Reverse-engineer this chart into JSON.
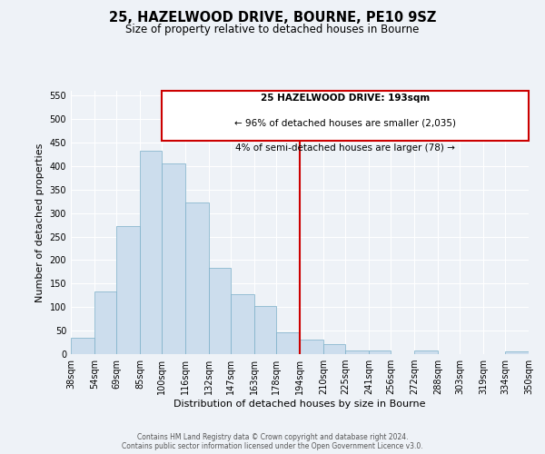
{
  "title": "25, HAZELWOOD DRIVE, BOURNE, PE10 9SZ",
  "subtitle": "Size of property relative to detached houses in Bourne",
  "xlabel": "Distribution of detached houses by size in Bourne",
  "ylabel": "Number of detached properties",
  "bin_labels": [
    "38sqm",
    "54sqm",
    "69sqm",
    "85sqm",
    "100sqm",
    "116sqm",
    "132sqm",
    "147sqm",
    "163sqm",
    "178sqm",
    "194sqm",
    "210sqm",
    "225sqm",
    "241sqm",
    "256sqm",
    "272sqm",
    "288sqm",
    "303sqm",
    "319sqm",
    "334sqm",
    "350sqm"
  ],
  "bin_edges": [
    38,
    54,
    69,
    85,
    100,
    116,
    132,
    147,
    163,
    178,
    194,
    210,
    225,
    241,
    256,
    272,
    288,
    303,
    319,
    334,
    350
  ],
  "bar_heights": [
    35,
    133,
    272,
    432,
    405,
    323,
    184,
    128,
    103,
    47,
    30,
    21,
    8,
    8,
    0,
    8,
    0,
    0,
    0,
    5
  ],
  "bar_color": "#ccdded",
  "bar_edge_color": "#7aaec8",
  "vline_x": 194,
  "vline_color": "#cc0000",
  "ylim": [
    0,
    560
  ],
  "yticks": [
    0,
    50,
    100,
    150,
    200,
    250,
    300,
    350,
    400,
    450,
    500,
    550
  ],
  "annotation_title": "25 HAZELWOOD DRIVE: 193sqm",
  "annotation_line1": "← 96% of detached houses are smaller (2,035)",
  "annotation_line2": "4% of semi-detached houses are larger (78) →",
  "annotation_box_color": "#cc0000",
  "footer_line1": "Contains HM Land Registry data © Crown copyright and database right 2024.",
  "footer_line2": "Contains public sector information licensed under the Open Government Licence v3.0.",
  "background_color": "#eef2f7",
  "grid_color": "#ffffff",
  "title_fontsize": 10.5,
  "subtitle_fontsize": 8.5,
  "axis_label_fontsize": 8,
  "tick_fontsize": 7,
  "annotation_fontsize": 7.5,
  "footer_fontsize": 5.5
}
